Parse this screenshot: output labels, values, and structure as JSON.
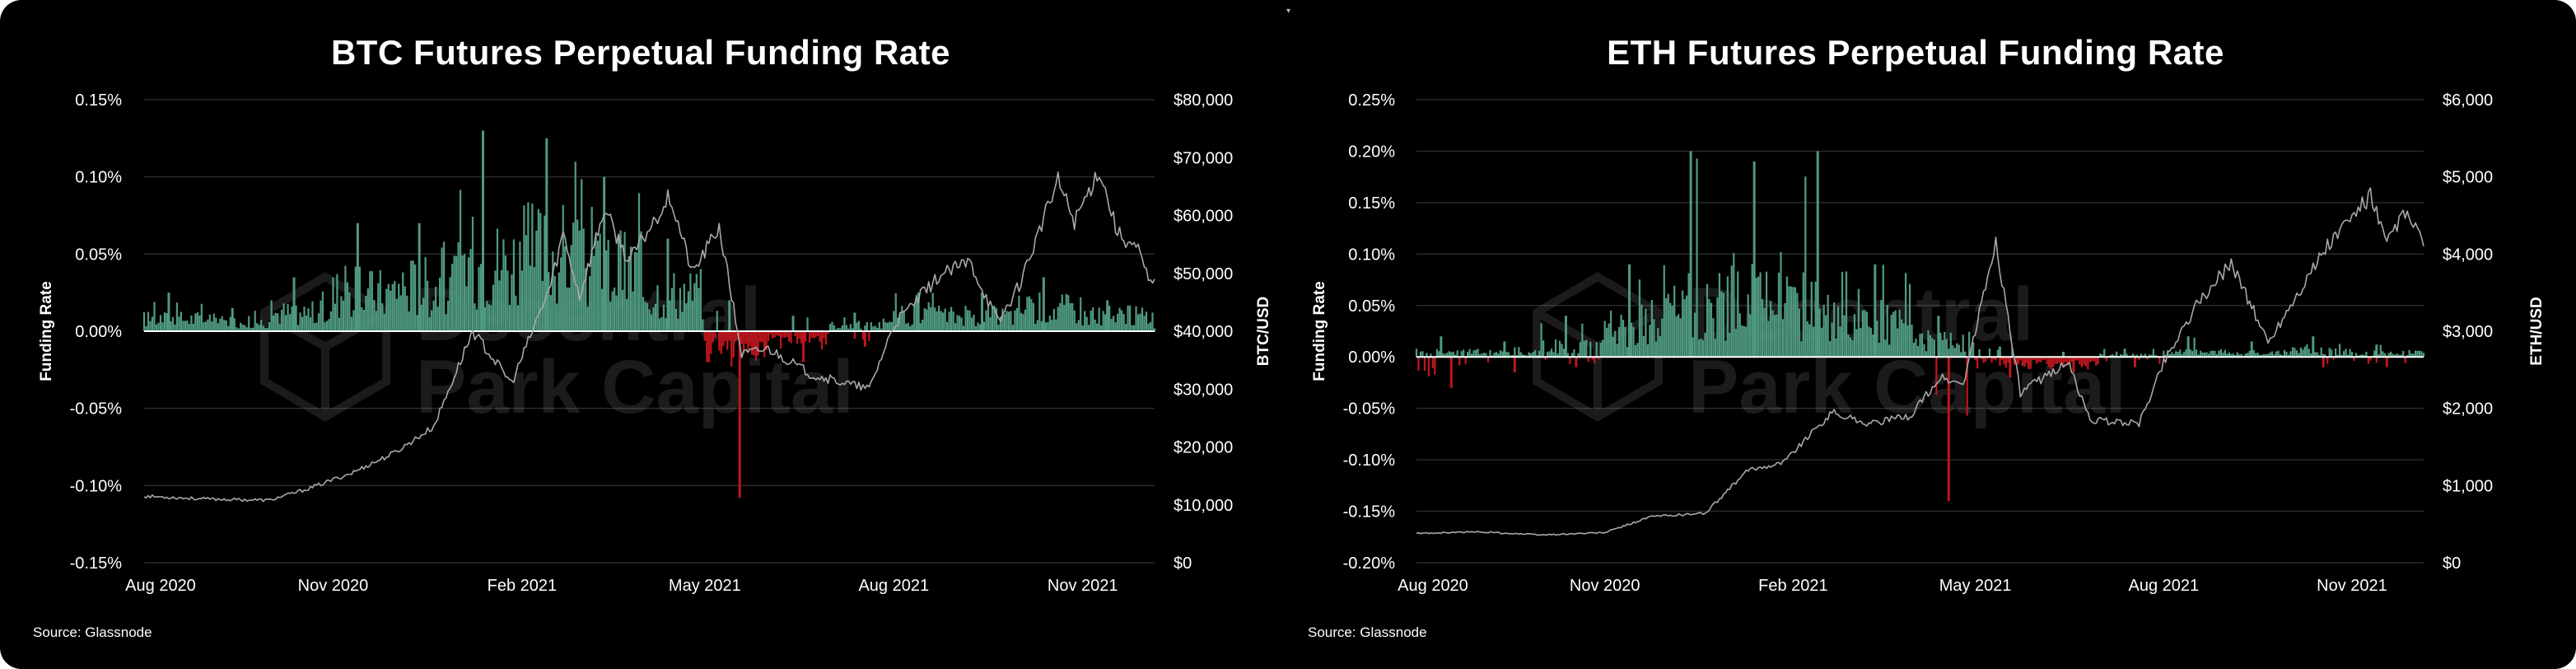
{
  "colors": {
    "background": "#000000",
    "positive_bar": "#4f9a7f",
    "negative_bar": "#c0161d",
    "price_line": "#a8a8a8",
    "grid": "#2a2a2a",
    "text": "#ffffff"
  },
  "watermark": {
    "line1": "Decentral",
    "line2": "Park Capital",
    "icon": "hexagon-cube-logo"
  },
  "chart_data": [
    {
      "type": "bar",
      "title": "BTC Futures Perpetual Funding Rate",
      "source": "Source: Glassnode",
      "ylabel": "Funding Rate",
      "y2label": "BTC/USD",
      "ylim": [
        -0.15,
        0.15
      ],
      "y2lim": [
        0,
        80000
      ],
      "yticks": [
        "0.15%",
        "0.10%",
        "0.05%",
        "0.00%",
        "-0.05%",
        "-0.10%",
        "-0.15%"
      ],
      "y2ticks": [
        "$80,000",
        "$70,000",
        "$60,000",
        "$50,000",
        "$40,000",
        "$30,000",
        "$20,000",
        "$10,000",
        "$0"
      ],
      "xticks": [
        "Aug 2020",
        "Nov 2020",
        "Feb 2021",
        "May 2021",
        "Aug 2021",
        "Nov 2021"
      ],
      "x_start": "2020-08-01",
      "x_end": "2021-12-06",
      "grid": true,
      "funding_rate_pct_monthly_profile": [
        {
          "date": "2020-08-01",
          "typical": 0.008,
          "peak": 0.025
        },
        {
          "date": "2020-09-01",
          "typical": 0.006,
          "peak": 0.015
        },
        {
          "date": "2020-10-01",
          "typical": 0.012,
          "peak": 0.035
        },
        {
          "date": "2020-11-01",
          "typical": 0.025,
          "peak": 0.07
        },
        {
          "date": "2020-12-01",
          "typical": 0.03,
          "peak": 0.07
        },
        {
          "date": "2021-01-01",
          "typical": 0.045,
          "peak": 0.13
        },
        {
          "date": "2021-02-01",
          "typical": 0.05,
          "peak": 0.125
        },
        {
          "date": "2021-03-01",
          "typical": 0.04,
          "peak": 0.1
        },
        {
          "date": "2021-04-01",
          "typical": 0.025,
          "peak": 0.06
        },
        {
          "date": "2021-05-01",
          "typical": -0.01,
          "peak": 0.02,
          "min": -0.108
        },
        {
          "date": "2021-06-01",
          "typical": -0.005,
          "peak": 0.01,
          "min": -0.02
        },
        {
          "date": "2021-07-01",
          "typical": 0.004,
          "peak": 0.012,
          "min": -0.01
        },
        {
          "date": "2021-08-01",
          "typical": 0.01,
          "peak": 0.025
        },
        {
          "date": "2021-09-01",
          "typical": 0.01,
          "peak": 0.025
        },
        {
          "date": "2021-10-01",
          "typical": 0.015,
          "peak": 0.035
        },
        {
          "date": "2021-11-01",
          "typical": 0.01,
          "peak": 0.02
        },
        {
          "date": "2021-12-06",
          "typical": 0.005,
          "peak": 0.012
        }
      ],
      "price_usd": [
        [
          "2020-08-01",
          11500
        ],
        [
          "2020-09-01",
          11000
        ],
        [
          "2020-10-01",
          10800
        ],
        [
          "2020-10-20",
          12800
        ],
        [
          "2020-11-10",
          15500
        ],
        [
          "2020-12-01",
          19000
        ],
        [
          "2020-12-20",
          23500
        ],
        [
          "2021-01-08",
          40000
        ],
        [
          "2021-01-27",
          31000
        ],
        [
          "2021-02-15",
          48000
        ],
        [
          "2021-02-21",
          57000
        ],
        [
          "2021-03-01",
          46000
        ],
        [
          "2021-03-13",
          61000
        ],
        [
          "2021-03-25",
          52000
        ],
        [
          "2021-04-14",
          63500
        ],
        [
          "2021-04-25",
          50000
        ],
        [
          "2021-05-08",
          58000
        ],
        [
          "2021-05-19",
          36000
        ],
        [
          "2021-06-01",
          37000
        ],
        [
          "2021-06-22",
          32500
        ],
        [
          "2021-07-20",
          30000
        ],
        [
          "2021-08-01",
          41000
        ],
        [
          "2021-08-23",
          49500
        ],
        [
          "2021-09-07",
          52000
        ],
        [
          "2021-09-21",
          41500
        ],
        [
          "2021-10-01",
          48000
        ],
        [
          "2021-10-20",
          66000
        ],
        [
          "2021-10-28",
          59000
        ],
        [
          "2021-11-09",
          68000
        ],
        [
          "2021-11-18",
          57000
        ],
        [
          "2021-11-28",
          54000
        ],
        [
          "2021-12-04",
          48000
        ],
        [
          "2021-12-06",
          49000
        ]
      ]
    },
    {
      "type": "bar",
      "title": "ETH Futures Perpetual Funding Rate",
      "source": "Source: Glassnode",
      "ylabel": "Funding Rate",
      "y2label": "ETH/USD",
      "ylim": [
        -0.2,
        0.25
      ],
      "y2lim": [
        0,
        6000
      ],
      "yticks": [
        "0.25%",
        "0.20%",
        "0.15%",
        "0.10%",
        "0.05%",
        "0.00%",
        "-0.05%",
        "-0.10%",
        "-0.15%",
        "-0.20%"
      ],
      "y2ticks": [
        "$6,000",
        "$5,000",
        "$4,000",
        "$3,000",
        "$2,000",
        "$1,000",
        "$0"
      ],
      "xticks": [
        "Aug 2020",
        "Nov 2020",
        "Feb 2021",
        "May 2021",
        "Aug 2021",
        "Nov 2021"
      ],
      "x_start": "2020-08-01",
      "x_end": "2021-12-06",
      "grid": true,
      "funding_rate_pct_monthly_profile": [
        {
          "date": "2020-08-01",
          "typical": 0.005,
          "peak": 0.02,
          "min": -0.03
        },
        {
          "date": "2020-09-01",
          "typical": 0.004,
          "peak": 0.015,
          "min": -0.015
        },
        {
          "date": "2020-10-01",
          "typical": 0.01,
          "peak": 0.04,
          "min": -0.01
        },
        {
          "date": "2020-11-01",
          "typical": 0.03,
          "peak": 0.09
        },
        {
          "date": "2020-12-01",
          "typical": 0.05,
          "peak": 0.2
        },
        {
          "date": "2021-01-01",
          "typical": 0.06,
          "peak": 0.19
        },
        {
          "date": "2021-02-01",
          "typical": 0.05,
          "peak": 0.2
        },
        {
          "date": "2021-03-01",
          "typical": 0.03,
          "peak": 0.09
        },
        {
          "date": "2021-04-01",
          "typical": 0.015,
          "peak": 0.04,
          "min": -0.14
        },
        {
          "date": "2021-05-01",
          "typical": -0.005,
          "peak": 0.01,
          "min": -0.02
        },
        {
          "date": "2021-06-01",
          "typical": -0.005,
          "peak": 0.005,
          "min": -0.015
        },
        {
          "date": "2021-07-01",
          "typical": 0.002,
          "peak": 0.008,
          "min": -0.01
        },
        {
          "date": "2021-08-01",
          "typical": 0.005,
          "peak": 0.02
        },
        {
          "date": "2021-09-01",
          "typical": 0.004,
          "peak": 0.015
        },
        {
          "date": "2021-10-01",
          "typical": 0.006,
          "peak": 0.02,
          "min": -0.01
        },
        {
          "date": "2021-11-01",
          "typical": 0.004,
          "peak": 0.012,
          "min": -0.01
        },
        {
          "date": "2021-12-06",
          "typical": 0.003,
          "peak": 0.008
        }
      ],
      "price_usd": [
        [
          "2020-08-01",
          380
        ],
        [
          "2020-09-01",
          400
        ],
        [
          "2020-10-01",
          360
        ],
        [
          "2020-11-01",
          390
        ],
        [
          "2020-11-24",
          600
        ],
        [
          "2020-12-20",
          640
        ],
        [
          "2021-01-10",
          1200
        ],
        [
          "2021-01-27",
          1300
        ],
        [
          "2021-02-20",
          1950
        ],
        [
          "2021-03-10",
          1800
        ],
        [
          "2021-03-30",
          1900
        ],
        [
          "2021-04-14",
          2400
        ],
        [
          "2021-04-25",
          2300
        ],
        [
          "2021-05-11",
          4150
        ],
        [
          "2021-05-23",
          2200
        ],
        [
          "2021-06-15",
          2600
        ],
        [
          "2021-06-26",
          1850
        ],
        [
          "2021-07-20",
          1800
        ],
        [
          "2021-08-01",
          2600
        ],
        [
          "2021-08-15",
          3250
        ],
        [
          "2021-09-03",
          3900
        ],
        [
          "2021-09-21",
          2850
        ],
        [
          "2021-10-01",
          3300
        ],
        [
          "2021-10-20",
          4100
        ],
        [
          "2021-11-10",
          4750
        ],
        [
          "2021-11-18",
          4100
        ],
        [
          "2021-11-25",
          4500
        ],
        [
          "2021-12-01",
          4400
        ],
        [
          "2021-12-06",
          4100
        ]
      ]
    }
  ]
}
